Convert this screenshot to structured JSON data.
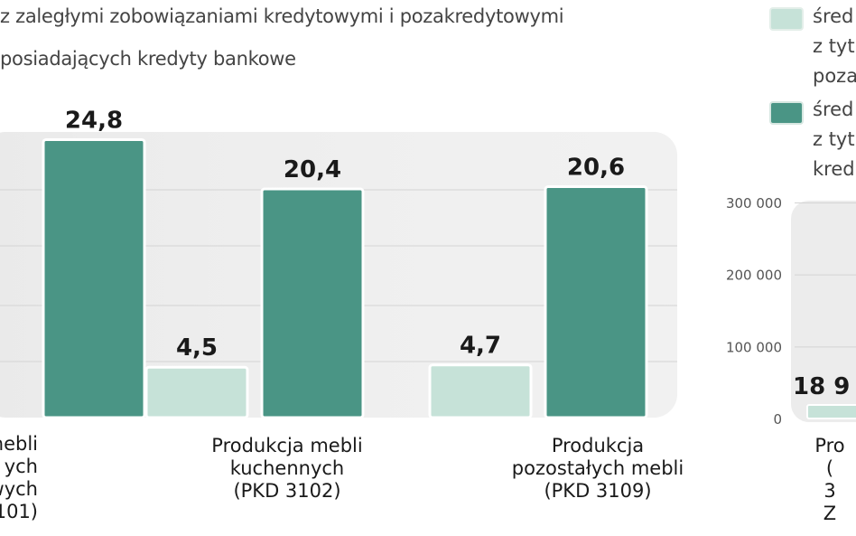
{
  "subtitle_line1": "z zaległymi zobowiązaniami kredytowymi i pozakredytowymi",
  "subtitle_line2": "posiadających kredyty bankowe",
  "legend": [
    {
      "lines": "śred\nz tyt\npoza",
      "color": "#c6e2d8"
    },
    {
      "lines": "śred\nz tyt\nkred",
      "color": "#4a9585"
    }
  ],
  "chart_data": [
    {
      "type": "bar",
      "categories": [
        "a mebli\nych\nwych\n101)",
        "Produkcja mebli\nkuchennych\n(PKD 3102)",
        "Produkcja\npozostałych mebli\n(PKD 3109)"
      ],
      "series": [
        {
          "values": [
            null,
            4.5,
            4.7
          ],
          "color": "#c6e2d8"
        },
        {
          "values": [
            24.8,
            20.4,
            20.6
          ],
          "color": "#4a9585"
        }
      ],
      "value_labels": [
        [
          "",
          "24,8"
        ],
        [
          "4,5",
          "20,4"
        ],
        [
          "4,7",
          "20,6"
        ]
      ],
      "ylim": [
        0,
        25
      ],
      "grid": true
    },
    {
      "type": "bar",
      "y_ticks": [
        "300 000",
        "200 000",
        "100 000",
        "0"
      ],
      "ylim": [
        0,
        300000
      ],
      "categories": [
        "Pro\n(\n3\nZ"
      ],
      "series": [
        {
          "values": [
            18900
          ],
          "color": "#c6e2d8"
        }
      ],
      "value_labels": [
        [
          "18 9"
        ]
      ],
      "grid": true
    }
  ]
}
